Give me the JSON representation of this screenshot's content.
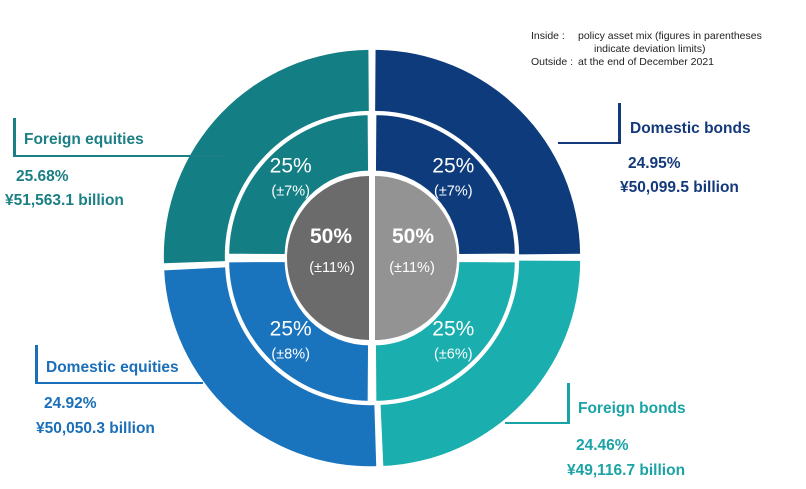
{
  "note": {
    "inside_key": "Inside :",
    "inside_text_1": "policy asset mix (figures in parentheses",
    "inside_text_2": "indicate deviation limits)",
    "outside_key": "Outside :",
    "outside_text": "at the end of December 2021"
  },
  "colors": {
    "domestic_bonds": "#0d3b7c",
    "foreign_bonds": "#1aaeae",
    "domestic_equities": "#1a74bd",
    "foreign_equities": "#137f84",
    "center_left": "#6b6b6b",
    "center_right": "#939393"
  },
  "chart_data": {
    "type": "pie",
    "outer": {
      "label": "at the end of December 2021",
      "slices": [
        {
          "name": "Domestic bonds",
          "percent_label": "24.95%",
          "value": 24.95,
          "amount": "¥50,099.5 billion",
          "color": "#0d3b7c"
        },
        {
          "name": "Foreign bonds",
          "percent_label": "24.46%",
          "value": 24.46,
          "amount": "¥49,116.7 billion",
          "color": "#1aaeae"
        },
        {
          "name": "Domestic equities",
          "percent_label": "24.92%",
          "value": 24.92,
          "amount": "¥50,050.3 billion",
          "color": "#1a74bd"
        },
        {
          "name": "Foreign equities",
          "percent_label": "25.68%",
          "value": 25.68,
          "amount": "¥51,563.1 billion",
          "color": "#137f84"
        }
      ]
    },
    "inner": {
      "label": "policy asset mix",
      "slices": [
        {
          "name": "Domestic bonds",
          "value": 25,
          "value_label": "25%",
          "limit_label": "(±7%)"
        },
        {
          "name": "Foreign bonds",
          "value": 25,
          "value_label": "25%",
          "limit_label": "(±6%)"
        },
        {
          "name": "Domestic equities",
          "value": 25,
          "value_label": "25%",
          "limit_label": "(±8%)"
        },
        {
          "name": "Foreign equities",
          "value": 25,
          "value_label": "25%",
          "limit_label": "(±7%)"
        }
      ]
    },
    "center": {
      "slices": [
        {
          "value": 50,
          "value_label": "50%",
          "limit_label": "(±11%)"
        },
        {
          "value": 50,
          "value_label": "50%",
          "limit_label": "(±11%)"
        }
      ]
    }
  }
}
